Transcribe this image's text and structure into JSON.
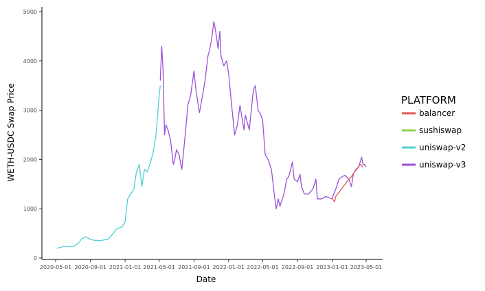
{
  "chart_data": {
    "type": "line",
    "xlabel": "Date",
    "ylabel": "WETH-USDC Swap Price",
    "legend_title": "PLATFORM",
    "legend_position": "right",
    "xlim": [
      "2020-05-01",
      "2023-05-01"
    ],
    "ylim": [
      0,
      5000
    ],
    "x_ticks": [
      "2020-05-01",
      "2020-09-01",
      "2021-01-01",
      "2021-05-01",
      "2021-09-01",
      "2022-01-01",
      "2022-05-01",
      "2022-09-01",
      "2023-01-01",
      "2023-05-01"
    ],
    "y_ticks": [
      0,
      1000,
      2000,
      3000,
      4000,
      5000
    ],
    "grid": false,
    "series": [
      {
        "name": "balancer",
        "color": "#e15a4c",
        "points": [
          [
            "2023-01-01",
            1200
          ],
          [
            "2023-01-05",
            1180
          ],
          [
            "2023-01-10",
            1140
          ],
          [
            "2023-01-14",
            1250
          ],
          [
            "2023-03-01",
            1600
          ],
          [
            "2023-03-10",
            1650
          ],
          [
            "2023-03-15",
            1700
          ],
          [
            "2023-04-10",
            1900
          ],
          [
            "2023-04-20",
            1850
          ]
        ]
      },
      {
        "name": "sushiswap",
        "color": "#8fd14f",
        "points": []
      },
      {
        "name": "uniswap-v2",
        "color": "#4fcfd1",
        "points": [
          [
            "2020-05-05",
            200
          ],
          [
            "2020-05-15",
            210
          ],
          [
            "2020-06-01",
            240
          ],
          [
            "2020-07-01",
            230
          ],
          [
            "2020-07-20",
            300
          ],
          [
            "2020-08-01",
            390
          ],
          [
            "2020-08-15",
            430
          ],
          [
            "2020-09-01",
            380
          ],
          [
            "2020-09-15",
            360
          ],
          [
            "2020-10-01",
            350
          ],
          [
            "2020-11-01",
            380
          ],
          [
            "2020-11-20",
            500
          ],
          [
            "2020-12-01",
            590
          ],
          [
            "2020-12-20",
            630
          ],
          [
            "2021-01-01",
            730
          ],
          [
            "2021-01-10",
            1200
          ],
          [
            "2021-01-20",
            1300
          ],
          [
            "2021-02-01",
            1400
          ],
          [
            "2021-02-10",
            1750
          ],
          [
            "2021-02-20",
            1900
          ],
          [
            "2021-03-01",
            1450
          ],
          [
            "2021-03-10",
            1800
          ],
          [
            "2021-03-20",
            1750
          ],
          [
            "2021-04-01",
            1950
          ],
          [
            "2021-04-10",
            2150
          ],
          [
            "2021-04-20",
            2500
          ],
          [
            "2021-05-01",
            3300
          ],
          [
            "2021-05-05",
            3500
          ]
        ]
      },
      {
        "name": "uniswap-v3",
        "color": "#9a4fd9",
        "points": [
          [
            "2021-05-05",
            3600
          ],
          [
            "2021-05-10",
            4300
          ],
          [
            "2021-05-15",
            3800
          ],
          [
            "2021-05-20",
            2500
          ],
          [
            "2021-05-25",
            2700
          ],
          [
            "2021-06-01",
            2600
          ],
          [
            "2021-06-10",
            2400
          ],
          [
            "2021-06-20",
            1900
          ],
          [
            "2021-06-25",
            2000
          ],
          [
            "2021-07-01",
            2200
          ],
          [
            "2021-07-10",
            2100
          ],
          [
            "2021-07-20",
            1800
          ],
          [
            "2021-08-01",
            2500
          ],
          [
            "2021-08-10",
            3100
          ],
          [
            "2021-08-20",
            3300
          ],
          [
            "2021-09-01",
            3800
          ],
          [
            "2021-09-08",
            3400
          ],
          [
            "2021-09-20",
            2950
          ],
          [
            "2021-10-01",
            3300
          ],
          [
            "2021-10-10",
            3600
          ],
          [
            "2021-10-20",
            4100
          ],
          [
            "2021-10-25",
            4200
          ],
          [
            "2021-11-01",
            4400
          ],
          [
            "2021-11-10",
            4800
          ],
          [
            "2021-11-15",
            4650
          ],
          [
            "2021-11-25",
            4250
          ],
          [
            "2021-12-01",
            4600
          ],
          [
            "2021-12-05",
            4100
          ],
          [
            "2021-12-15",
            3900
          ],
          [
            "2021-12-25",
            4000
          ],
          [
            "2022-01-01",
            3750
          ],
          [
            "2022-01-10",
            3200
          ],
          [
            "2022-01-22",
            2500
          ],
          [
            "2022-02-01",
            2700
          ],
          [
            "2022-02-10",
            3100
          ],
          [
            "2022-02-24",
            2600
          ],
          [
            "2022-03-01",
            2900
          ],
          [
            "2022-03-15",
            2600
          ],
          [
            "2022-03-29",
            3400
          ],
          [
            "2022-04-05",
            3500
          ],
          [
            "2022-04-15",
            3000
          ],
          [
            "2022-04-25",
            2900
          ],
          [
            "2022-05-01",
            2800
          ],
          [
            "2022-05-10",
            2100
          ],
          [
            "2022-05-20",
            2000
          ],
          [
            "2022-06-01",
            1800
          ],
          [
            "2022-06-13",
            1200
          ],
          [
            "2022-06-18",
            1000
          ],
          [
            "2022-06-25",
            1200
          ],
          [
            "2022-07-01",
            1050
          ],
          [
            "2022-07-15",
            1300
          ],
          [
            "2022-07-25",
            1600
          ],
          [
            "2022-08-01",
            1650
          ],
          [
            "2022-08-14",
            1950
          ],
          [
            "2022-08-20",
            1600
          ],
          [
            "2022-09-01",
            1550
          ],
          [
            "2022-09-10",
            1700
          ],
          [
            "2022-09-15",
            1450
          ],
          [
            "2022-09-25",
            1300
          ],
          [
            "2022-10-10",
            1300
          ],
          [
            "2022-10-25",
            1400
          ],
          [
            "2022-11-05",
            1600
          ],
          [
            "2022-11-10",
            1200
          ],
          [
            "2022-11-25",
            1200
          ],
          [
            "2022-12-10",
            1250
          ],
          [
            "2022-12-31",
            1200
          ],
          [
            "2023-01-14",
            1400
          ],
          [
            "2023-01-25",
            1600
          ],
          [
            "2023-02-05",
            1650
          ],
          [
            "2023-02-15",
            1680
          ],
          [
            "2023-03-01",
            1600
          ],
          [
            "2023-03-10",
            1450
          ],
          [
            "2023-03-17",
            1700
          ],
          [
            "2023-03-25",
            1800
          ],
          [
            "2023-04-05",
            1850
          ],
          [
            "2023-04-15",
            2050
          ],
          [
            "2023-04-20",
            1900
          ],
          [
            "2023-04-25",
            1900
          ],
          [
            "2023-05-01",
            1850
          ]
        ]
      }
    ]
  }
}
